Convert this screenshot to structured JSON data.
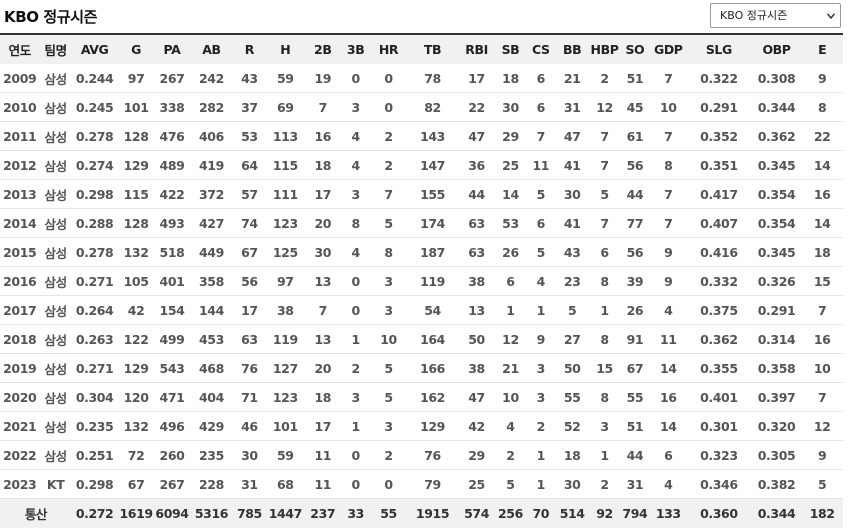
{
  "title": "KBO 정규시즌",
  "season_select": {
    "selected": "KBO 정규시즌",
    "icon": "chevron-down-icon"
  },
  "table": {
    "headers": [
      "연도",
      "팀명",
      "AVG",
      "G",
      "PA",
      "AB",
      "R",
      "H",
      "2B",
      "3B",
      "HR",
      "TB",
      "RBI",
      "SB",
      "CS",
      "BB",
      "HBP",
      "SO",
      "GDP",
      "SLG",
      "OBP",
      "E"
    ],
    "rows": [
      [
        "2009",
        "삼성",
        "0.244",
        "97",
        "267",
        "242",
        "43",
        "59",
        "19",
        "0",
        "0",
        "78",
        "17",
        "18",
        "6",
        "21",
        "2",
        "51",
        "7",
        "0.322",
        "0.308",
        "9"
      ],
      [
        "2010",
        "삼성",
        "0.245",
        "101",
        "338",
        "282",
        "37",
        "69",
        "7",
        "3",
        "0",
        "82",
        "22",
        "30",
        "6",
        "31",
        "12",
        "45",
        "10",
        "0.291",
        "0.344",
        "8"
      ],
      [
        "2011",
        "삼성",
        "0.278",
        "128",
        "476",
        "406",
        "53",
        "113",
        "16",
        "4",
        "2",
        "143",
        "47",
        "29",
        "7",
        "47",
        "7",
        "61",
        "7",
        "0.352",
        "0.362",
        "22"
      ],
      [
        "2012",
        "삼성",
        "0.274",
        "129",
        "489",
        "419",
        "64",
        "115",
        "18",
        "4",
        "2",
        "147",
        "36",
        "25",
        "11",
        "41",
        "7",
        "56",
        "8",
        "0.351",
        "0.345",
        "14"
      ],
      [
        "2013",
        "삼성",
        "0.298",
        "115",
        "422",
        "372",
        "57",
        "111",
        "17",
        "3",
        "7",
        "155",
        "44",
        "14",
        "5",
        "30",
        "5",
        "44",
        "7",
        "0.417",
        "0.354",
        "16"
      ],
      [
        "2014",
        "삼성",
        "0.288",
        "128",
        "493",
        "427",
        "74",
        "123",
        "20",
        "8",
        "5",
        "174",
        "63",
        "53",
        "6",
        "41",
        "7",
        "77",
        "7",
        "0.407",
        "0.354",
        "14"
      ],
      [
        "2015",
        "삼성",
        "0.278",
        "132",
        "518",
        "449",
        "67",
        "125",
        "30",
        "4",
        "8",
        "187",
        "63",
        "26",
        "5",
        "43",
        "6",
        "56",
        "9",
        "0.416",
        "0.345",
        "18"
      ],
      [
        "2016",
        "삼성",
        "0.271",
        "105",
        "401",
        "358",
        "56",
        "97",
        "13",
        "0",
        "3",
        "119",
        "38",
        "6",
        "4",
        "23",
        "8",
        "39",
        "9",
        "0.332",
        "0.326",
        "15"
      ],
      [
        "2017",
        "삼성",
        "0.264",
        "42",
        "154",
        "144",
        "17",
        "38",
        "7",
        "0",
        "3",
        "54",
        "13",
        "1",
        "1",
        "5",
        "1",
        "26",
        "4",
        "0.375",
        "0.291",
        "7"
      ],
      [
        "2018",
        "삼성",
        "0.263",
        "122",
        "499",
        "453",
        "63",
        "119",
        "13",
        "1",
        "10",
        "164",
        "50",
        "12",
        "9",
        "27",
        "8",
        "91",
        "11",
        "0.362",
        "0.314",
        "16"
      ],
      [
        "2019",
        "삼성",
        "0.271",
        "129",
        "543",
        "468",
        "76",
        "127",
        "20",
        "2",
        "5",
        "166",
        "38",
        "21",
        "3",
        "50",
        "15",
        "67",
        "14",
        "0.355",
        "0.358",
        "10"
      ],
      [
        "2020",
        "삼성",
        "0.304",
        "120",
        "471",
        "404",
        "71",
        "123",
        "18",
        "3",
        "5",
        "162",
        "47",
        "10",
        "3",
        "55",
        "8",
        "55",
        "16",
        "0.401",
        "0.397",
        "7"
      ],
      [
        "2021",
        "삼성",
        "0.235",
        "132",
        "496",
        "429",
        "46",
        "101",
        "17",
        "1",
        "3",
        "129",
        "42",
        "4",
        "2",
        "52",
        "3",
        "51",
        "14",
        "0.301",
        "0.320",
        "12"
      ],
      [
        "2022",
        "삼성",
        "0.251",
        "72",
        "260",
        "235",
        "30",
        "59",
        "11",
        "0",
        "2",
        "76",
        "29",
        "2",
        "1",
        "18",
        "1",
        "44",
        "6",
        "0.323",
        "0.305",
        "9"
      ],
      [
        "2023",
        "KT",
        "0.298",
        "67",
        "267",
        "228",
        "31",
        "68",
        "11",
        "0",
        "0",
        "79",
        "25",
        "5",
        "1",
        "30",
        "2",
        "31",
        "4",
        "0.346",
        "0.382",
        "5"
      ]
    ],
    "total": [
      "통산",
      "0.272",
      "1619",
      "6094",
      "5316",
      "785",
      "1447",
      "237",
      "33",
      "55",
      "1915",
      "574",
      "256",
      "70",
      "514",
      "92",
      "794",
      "133",
      "0.360",
      "0.344",
      "182"
    ]
  }
}
